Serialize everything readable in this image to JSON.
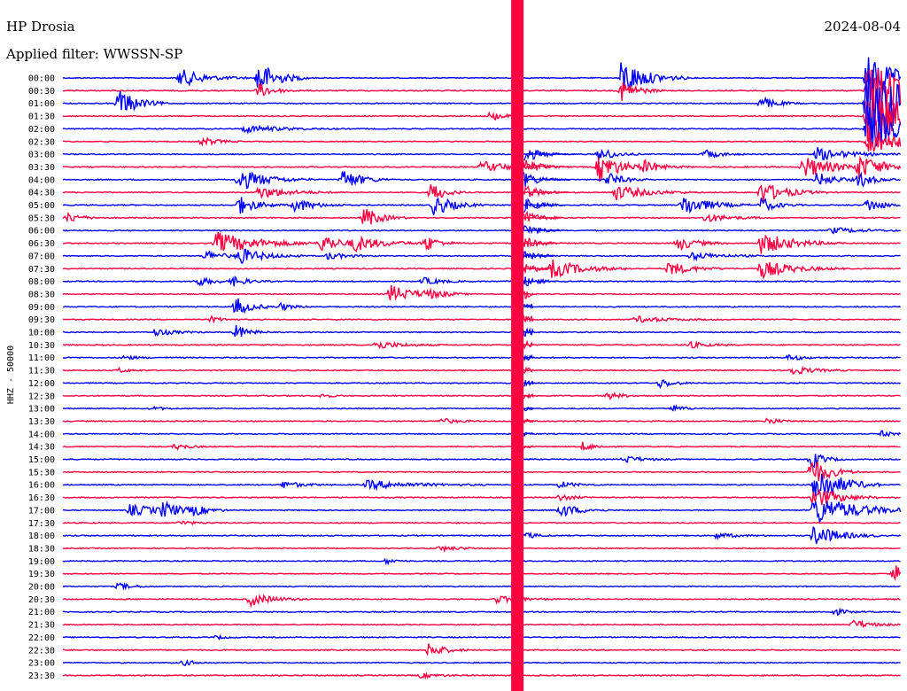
{
  "header": {
    "station": "HP Drosia",
    "date": "2024-08-04",
    "filter": "Applied filter: WWSSN-SP"
  },
  "chart_data": {
    "type": "helicorder",
    "title": "HP Drosia",
    "date": "2024-08-04",
    "ylabel": "HHZ - 50000",
    "row_minutes": 30,
    "colors": {
      "odd_rows": "#0000ff",
      "even_rows": "#ff0040"
    },
    "rows": [
      "00:00",
      "00:30",
      "01:00",
      "01:30",
      "02:00",
      "02:30",
      "03:00",
      "03:30",
      "04:00",
      "04:30",
      "05:00",
      "05:30",
      "06:00",
      "06:30",
      "07:00",
      "07:30",
      "08:00",
      "08:30",
      "09:00",
      "09:30",
      "10:00",
      "10:30",
      "11:00",
      "11:30",
      "12:00",
      "12:30",
      "13:00",
      "13:30",
      "14:00",
      "14:30",
      "15:00",
      "15:30",
      "16:00",
      "16:30",
      "17:00",
      "17:30",
      "18:00",
      "18:30",
      "19:00",
      "19:30",
      "20:00",
      "20:30",
      "21:00",
      "21:30",
      "22:00",
      "22:30",
      "23:00",
      "23:30"
    ],
    "events": [
      {
        "row": 0,
        "t": 4.2,
        "amp": 2.5,
        "dur": 0.8
      },
      {
        "row": 0,
        "t": 7.0,
        "amp": 5,
        "dur": 0.6
      },
      {
        "row": 0,
        "t": 20.0,
        "amp": 5,
        "dur": 0.8
      },
      {
        "row": 0,
        "t": 28.8,
        "amp": 6,
        "dur": 1.0
      },
      {
        "row": 1,
        "t": 7.0,
        "amp": 2,
        "dur": 0.5
      },
      {
        "row": 1,
        "t": 20.0,
        "amp": 3,
        "dur": 0.5
      },
      {
        "row": 1,
        "t": 28.8,
        "amp": 8,
        "dur": 1.5
      },
      {
        "row": 2,
        "t": 2.0,
        "amp": 4,
        "dur": 0.6
      },
      {
        "row": 2,
        "t": 25.0,
        "amp": 1.8,
        "dur": 0.5
      },
      {
        "row": 2,
        "t": 28.8,
        "amp": 10,
        "dur": 2.0
      },
      {
        "row": 3,
        "t": 15.3,
        "amp": 1.2,
        "dur": 0.5
      },
      {
        "row": 3,
        "t": 28.8,
        "amp": 9,
        "dur": 1.5
      },
      {
        "row": 4,
        "t": 6.5,
        "amp": 1.0,
        "dur": 1.2
      },
      {
        "row": 4,
        "t": 28.8,
        "amp": 7,
        "dur": 1.0
      },
      {
        "row": 5,
        "t": 5.0,
        "amp": 1.2,
        "dur": 0.5
      },
      {
        "row": 5,
        "t": 28.8,
        "amp": 4,
        "dur": 1.0
      },
      {
        "row": 6,
        "t": 19.2,
        "amp": 2.0,
        "dur": 0.5
      },
      {
        "row": 6,
        "t": 23.0,
        "amp": 1.2,
        "dur": 0.5
      },
      {
        "row": 6,
        "t": 27.0,
        "amp": 1.8,
        "dur": 1.0
      },
      {
        "row": 7,
        "t": 15.0,
        "amp": 1.5,
        "dur": 1.0
      },
      {
        "row": 7,
        "t": 19.2,
        "amp": 4,
        "dur": 0.7
      },
      {
        "row": 7,
        "t": 20.8,
        "amp": 1.5,
        "dur": 0.6
      },
      {
        "row": 7,
        "t": 26.5,
        "amp": 3,
        "dur": 1.0
      },
      {
        "row": 7,
        "t": 28.5,
        "amp": 3,
        "dur": 0.8
      },
      {
        "row": 8,
        "t": 6.3,
        "amp": 3,
        "dur": 0.9
      },
      {
        "row": 8,
        "t": 10.0,
        "amp": 3,
        "dur": 0.6
      },
      {
        "row": 8,
        "t": 19.5,
        "amp": 2,
        "dur": 0.5
      },
      {
        "row": 8,
        "t": 27.0,
        "amp": 2,
        "dur": 0.6
      },
      {
        "row": 8,
        "t": 28.5,
        "amp": 2,
        "dur": 0.5
      },
      {
        "row": 9,
        "t": 7.0,
        "amp": 1.6,
        "dur": 1.0
      },
      {
        "row": 9,
        "t": 13.2,
        "amp": 3,
        "dur": 0.4
      },
      {
        "row": 9,
        "t": 19.8,
        "amp": 2,
        "dur": 1.0
      },
      {
        "row": 9,
        "t": 25.0,
        "amp": 3,
        "dur": 0.8
      },
      {
        "row": 10,
        "t": 6.3,
        "amp": 2.5,
        "dur": 0.6
      },
      {
        "row": 10,
        "t": 8.3,
        "amp": 2,
        "dur": 0.6
      },
      {
        "row": 10,
        "t": 13.3,
        "amp": 3,
        "dur": 0.6
      },
      {
        "row": 10,
        "t": 22.2,
        "amp": 3,
        "dur": 0.8
      },
      {
        "row": 10,
        "t": 25.0,
        "amp": 2,
        "dur": 0.5
      },
      {
        "row": 10,
        "t": 28.8,
        "amp": 2,
        "dur": 0.5
      },
      {
        "row": 11,
        "t": 0.2,
        "amp": 1.5,
        "dur": 0.4
      },
      {
        "row": 11,
        "t": 10.8,
        "amp": 3,
        "dur": 0.5
      },
      {
        "row": 11,
        "t": 23.0,
        "amp": 1.2,
        "dur": 0.8
      },
      {
        "row": 12,
        "t": 27.5,
        "amp": 0.8,
        "dur": 1.0
      },
      {
        "row": 13,
        "t": 5.5,
        "amp": 3,
        "dur": 1.4
      },
      {
        "row": 13,
        "t": 9.3,
        "amp": 2.5,
        "dur": 0.6
      },
      {
        "row": 13,
        "t": 10.4,
        "amp": 2,
        "dur": 1.0
      },
      {
        "row": 13,
        "t": 13.0,
        "amp": 2.2,
        "dur": 0.4
      },
      {
        "row": 13,
        "t": 22.0,
        "amp": 2,
        "dur": 0.6
      },
      {
        "row": 13,
        "t": 25.0,
        "amp": 3,
        "dur": 1.0
      },
      {
        "row": 14,
        "t": 5.1,
        "amp": 1.5,
        "dur": 0.6
      },
      {
        "row": 14,
        "t": 6.3,
        "amp": 2.2,
        "dur": 0.8
      },
      {
        "row": 14,
        "t": 9.5,
        "amp": 1.0,
        "dur": 0.6
      },
      {
        "row": 14,
        "t": 22.5,
        "amp": 1.0,
        "dur": 1.0
      },
      {
        "row": 15,
        "t": 17.5,
        "amp": 2.5,
        "dur": 1.0
      },
      {
        "row": 15,
        "t": 21.7,
        "amp": 2.0,
        "dur": 0.7
      },
      {
        "row": 15,
        "t": 25.0,
        "amp": 2.5,
        "dur": 1.0
      },
      {
        "row": 16,
        "t": 4.8,
        "amp": 1.2,
        "dur": 0.6
      },
      {
        "row": 16,
        "t": 6.1,
        "amp": 1.2,
        "dur": 0.5
      },
      {
        "row": 16,
        "t": 12.9,
        "amp": 1.0,
        "dur": 0.6
      },
      {
        "row": 17,
        "t": 11.7,
        "amp": 2.5,
        "dur": 0.8
      },
      {
        "row": 17,
        "t": 13.0,
        "amp": 1.0,
        "dur": 0.6
      },
      {
        "row": 18,
        "t": 6.2,
        "amp": 2.5,
        "dur": 0.5
      },
      {
        "row": 18,
        "t": 7.8,
        "amp": 1.0,
        "dur": 0.4
      },
      {
        "row": 19,
        "t": 5.3,
        "amp": 0.8,
        "dur": 0.4
      },
      {
        "row": 19,
        "t": 20.5,
        "amp": 0.9,
        "dur": 1.0
      },
      {
        "row": 20,
        "t": 3.3,
        "amp": 1.0,
        "dur": 0.6
      },
      {
        "row": 20,
        "t": 6.2,
        "amp": 2,
        "dur": 0.4
      },
      {
        "row": 21,
        "t": 11.2,
        "amp": 1.2,
        "dur": 0.8
      },
      {
        "row": 21,
        "t": 22.4,
        "amp": 0.9,
        "dur": 0.6
      },
      {
        "row": 22,
        "t": 2.2,
        "amp": 0.6,
        "dur": 0.4
      },
      {
        "row": 22,
        "t": 26.0,
        "amp": 0.8,
        "dur": 0.5
      },
      {
        "row": 23,
        "t": 2.0,
        "amp": 0.6,
        "dur": 0.4
      },
      {
        "row": 23,
        "t": 26.1,
        "amp": 1.2,
        "dur": 0.7
      },
      {
        "row": 24,
        "t": 21.4,
        "amp": 1.4,
        "dur": 0.4
      },
      {
        "row": 25,
        "t": 9.3,
        "amp": 0.6,
        "dur": 0.3
      },
      {
        "row": 25,
        "t": 19.5,
        "amp": 1.0,
        "dur": 0.5
      },
      {
        "row": 26,
        "t": 3.2,
        "amp": 0.5,
        "dur": 0.4
      },
      {
        "row": 26,
        "t": 21.8,
        "amp": 0.9,
        "dur": 0.4
      },
      {
        "row": 27,
        "t": 13.5,
        "amp": 0.9,
        "dur": 0.5
      },
      {
        "row": 27,
        "t": 25.2,
        "amp": 1.0,
        "dur": 0.4
      },
      {
        "row": 28,
        "t": 29.3,
        "amp": 0.8,
        "dur": 0.4
      },
      {
        "row": 29,
        "t": 4.0,
        "amp": 0.8,
        "dur": 0.5
      },
      {
        "row": 29,
        "t": 18.6,
        "amp": 1.2,
        "dur": 0.4
      },
      {
        "row": 30,
        "t": 20.1,
        "amp": 1.0,
        "dur": 0.6
      },
      {
        "row": 30,
        "t": 26.8,
        "amp": 2.5,
        "dur": 0.4
      },
      {
        "row": 31,
        "t": 26.8,
        "amp": 4,
        "dur": 0.6
      },
      {
        "row": 32,
        "t": 7.9,
        "amp": 1.0,
        "dur": 0.6
      },
      {
        "row": 32,
        "t": 10.9,
        "amp": 1.2,
        "dur": 1.5
      },
      {
        "row": 32,
        "t": 17.8,
        "amp": 0.9,
        "dur": 0.5
      },
      {
        "row": 32,
        "t": 26.9,
        "amp": 6,
        "dur": 0.8
      },
      {
        "row": 33,
        "t": 17.8,
        "amp": 1.0,
        "dur": 0.4
      },
      {
        "row": 33,
        "t": 26.9,
        "amp": 3,
        "dur": 0.8
      },
      {
        "row": 34,
        "t": 2.4,
        "amp": 1.5,
        "dur": 1.2
      },
      {
        "row": 34,
        "t": 3.6,
        "amp": 2.0,
        "dur": 0.5
      },
      {
        "row": 34,
        "t": 4.7,
        "amp": 1.2,
        "dur": 0.4
      },
      {
        "row": 34,
        "t": 17.8,
        "amp": 2.0,
        "dur": 0.6
      },
      {
        "row": 34,
        "t": 26.9,
        "amp": 4,
        "dur": 1.4
      },
      {
        "row": 35,
        "t": 4.2,
        "amp": 0.6,
        "dur": 0.5
      },
      {
        "row": 36,
        "t": 16.6,
        "amp": 0.8,
        "dur": 0.4
      },
      {
        "row": 36,
        "t": 23.4,
        "amp": 0.8,
        "dur": 0.6
      },
      {
        "row": 36,
        "t": 26.9,
        "amp": 3,
        "dur": 0.8
      },
      {
        "row": 37,
        "t": 13.5,
        "amp": 0.7,
        "dur": 0.6
      },
      {
        "row": 38,
        "t": 11.6,
        "amp": 0.8,
        "dur": 0.3
      },
      {
        "row": 39,
        "t": 29.7,
        "amp": 3,
        "dur": 0.4
      },
      {
        "row": 40,
        "t": 2.0,
        "amp": 1.0,
        "dur": 0.4
      },
      {
        "row": 41,
        "t": 6.7,
        "amp": 1.8,
        "dur": 0.7
      },
      {
        "row": 41,
        "t": 15.5,
        "amp": 1.0,
        "dur": 0.8
      },
      {
        "row": 42,
        "t": 27.6,
        "amp": 1.0,
        "dur": 0.4
      },
      {
        "row": 43,
        "t": 28.3,
        "amp": 1.2,
        "dur": 0.6
      },
      {
        "row": 44,
        "t": 5.5,
        "amp": 0.5,
        "dur": 0.3
      },
      {
        "row": 45,
        "t": 13.1,
        "amp": 2.0,
        "dur": 0.5
      },
      {
        "row": 46,
        "t": 4.3,
        "amp": 0.8,
        "dur": 0.4
      },
      {
        "row": 47,
        "t": 12.8,
        "amp": 0.6,
        "dur": 0.7
      }
    ]
  }
}
